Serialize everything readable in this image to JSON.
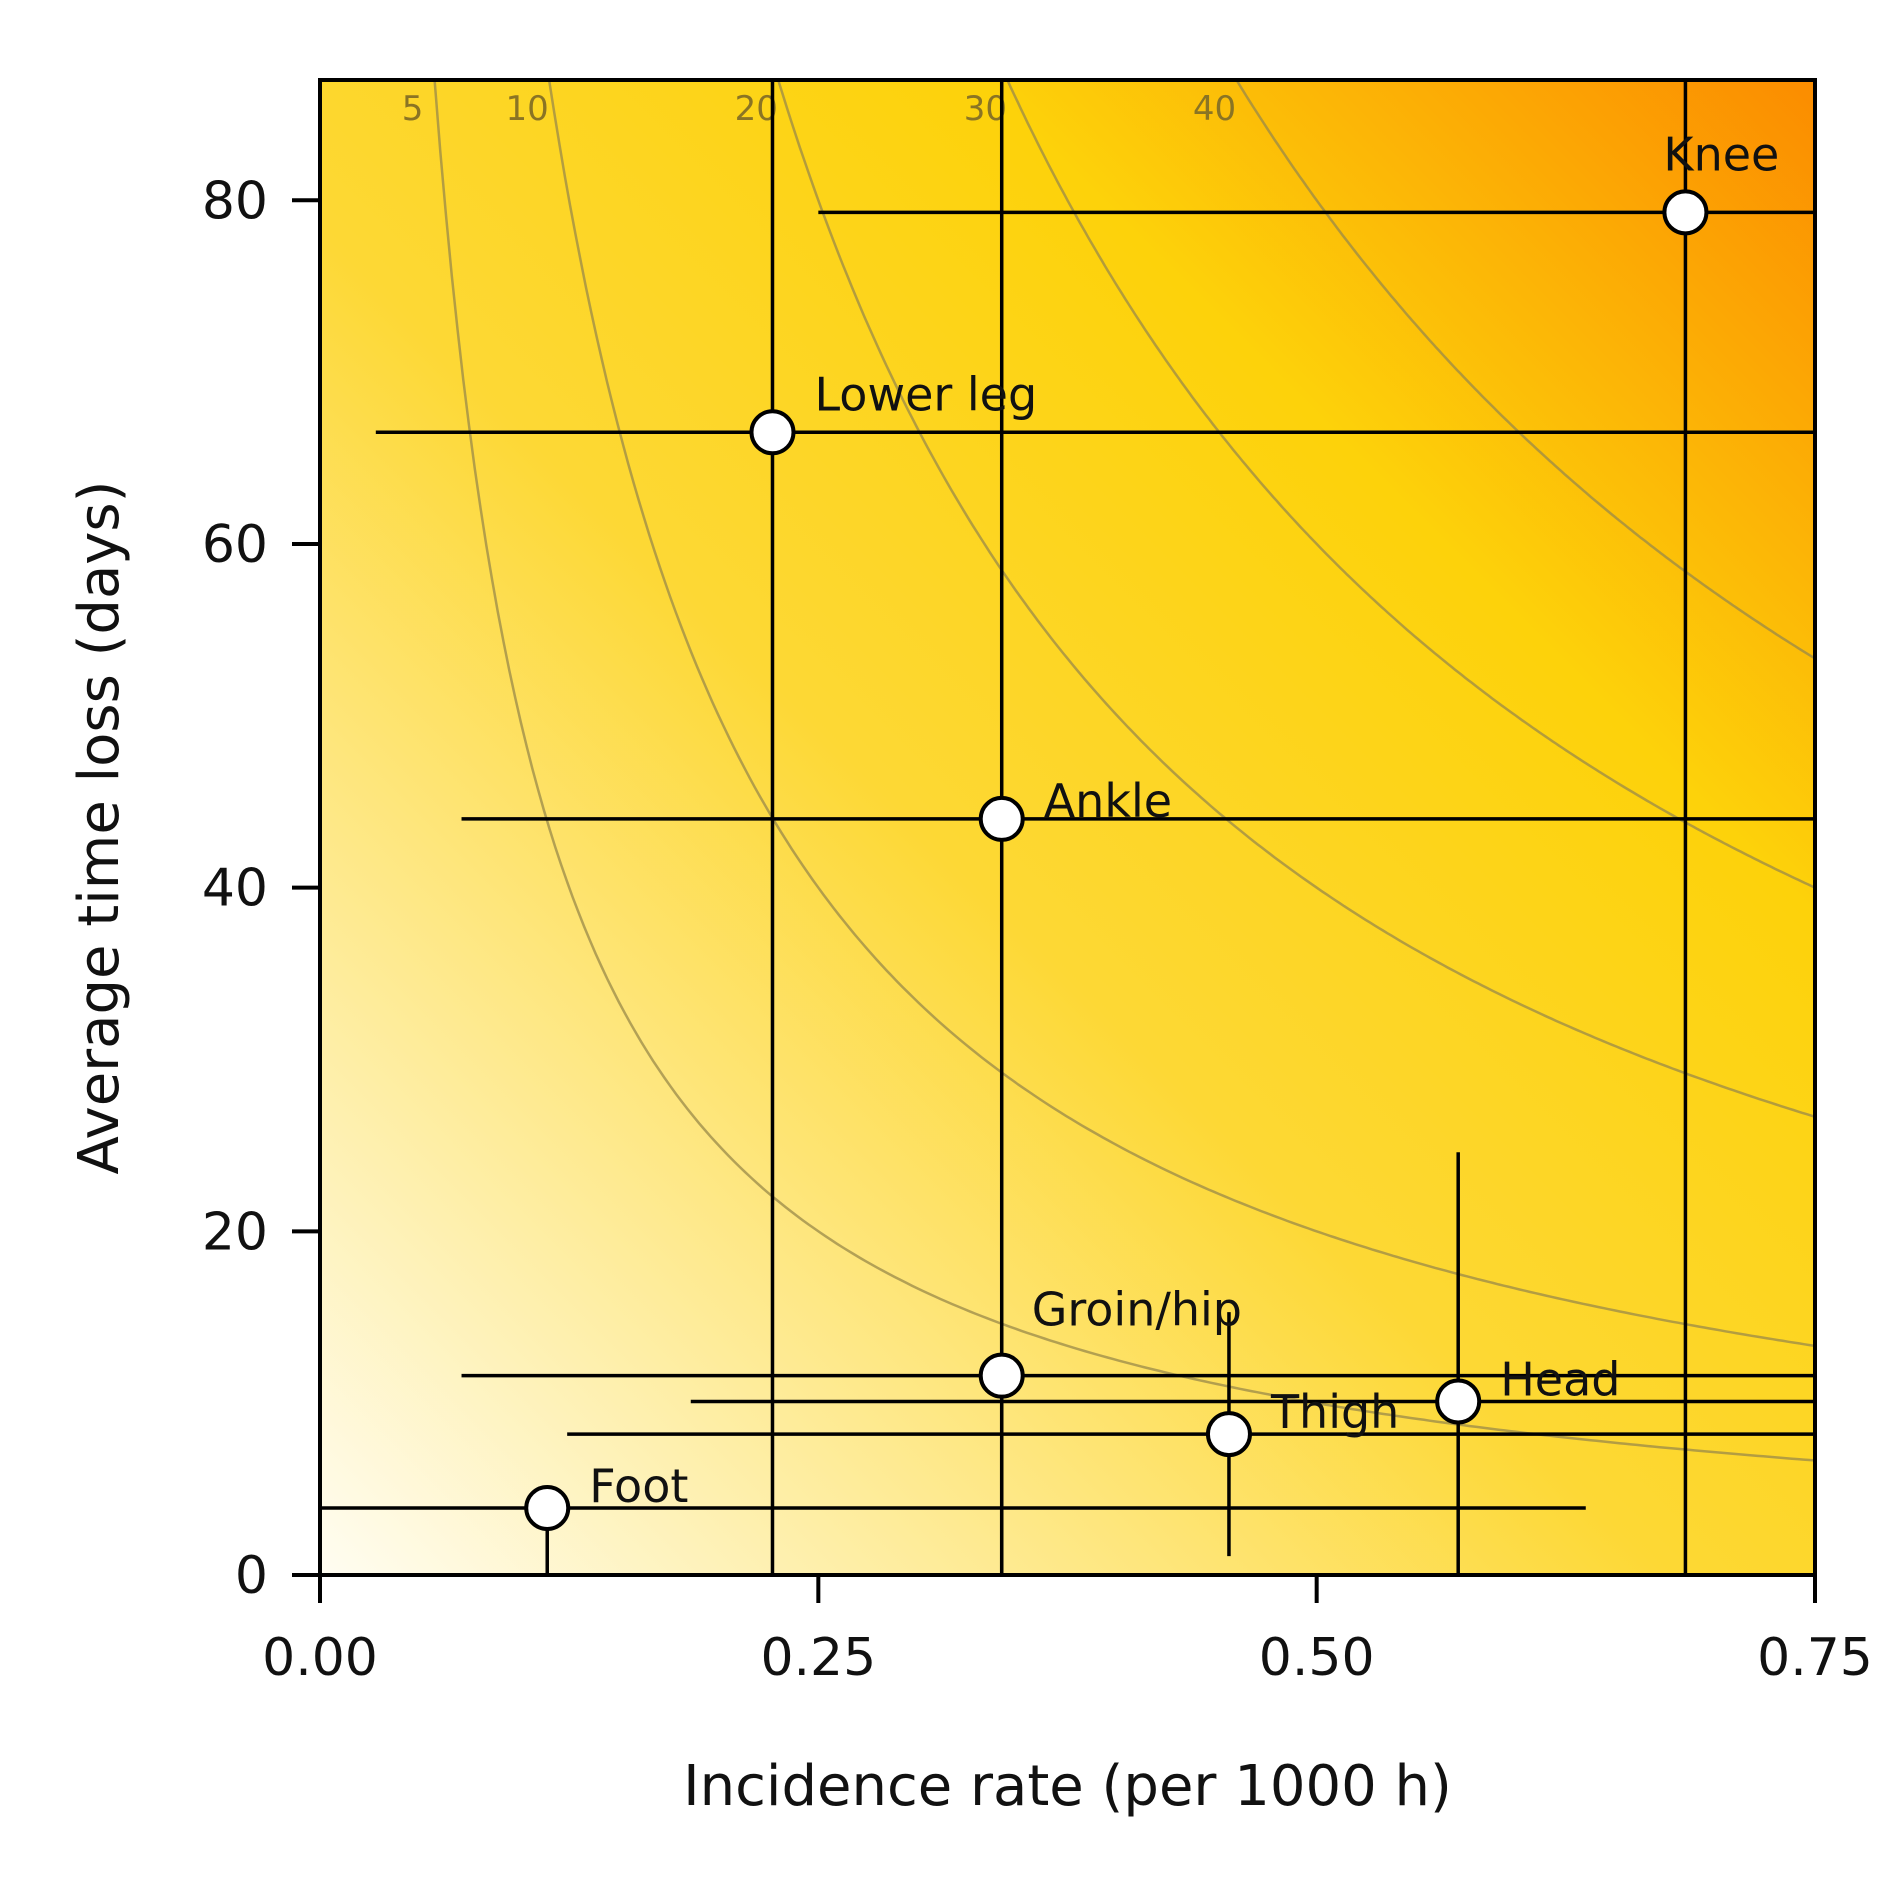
{
  "chart_data": {
    "type": "scatter",
    "title": "",
    "xlabel": "Incidence rate (per 1000 h)",
    "ylabel": "Average time loss (days)",
    "xlim": [
      0,
      0.75
    ],
    "ylim": [
      0,
      87
    ],
    "x_ticks": [
      0,
      0.25,
      0.5,
      0.75
    ],
    "x_tick_labels": [
      "0.00",
      "0.25",
      "0.50",
      "0.75"
    ],
    "y_ticks": [
      0,
      20,
      40,
      60,
      80
    ],
    "y_tick_labels": [
      "0",
      "20",
      "40",
      "60",
      "80"
    ],
    "grid": false,
    "background": "burden gradient: low burden light cream (bottom-left) to high burden orange (top-right)",
    "burden_contours": {
      "levels": [
        5,
        10,
        20,
        30,
        40
      ],
      "labels": [
        "5",
        "10",
        "20",
        "30",
        "40"
      ],
      "relation": "burden = incidence x average time loss"
    },
    "points": [
      {
        "label": "Knee",
        "x": 0.685,
        "y": 79.3,
        "x_ci": [
          0.25,
          0.75
        ],
        "y_ci": [
          0,
          87
        ]
      },
      {
        "label": "Lower leg",
        "x": 0.227,
        "y": 66.5,
        "x_ci": [
          0.028,
          0.75
        ],
        "y_ci": [
          0,
          87
        ]
      },
      {
        "label": "Ankle",
        "x": 0.342,
        "y": 44.0,
        "x_ci": [
          0.071,
          0.75
        ],
        "y_ci": [
          0,
          87
        ]
      },
      {
        "label": "Groin/hip",
        "x": 0.342,
        "y": 11.6,
        "x_ci": [
          0.071,
          0.75
        ],
        "y_ci": [
          0,
          14.4
        ]
      },
      {
        "label": "Head",
        "x": 0.571,
        "y": 10.1,
        "x_ci": [
          0.186,
          0.75
        ],
        "y_ci": [
          0,
          24.6
        ]
      },
      {
        "label": "Thigh",
        "x": 0.456,
        "y": 8.2,
        "x_ci": [
          0.124,
          0.75
        ],
        "y_ci": [
          1.1,
          15.3
        ]
      },
      {
        "label": "Foot",
        "x": 0.114,
        "y": 3.9,
        "x_ci": [
          0,
          0.635
        ],
        "y_ci": [
          0,
          3.9
        ]
      }
    ],
    "colors": {
      "gradient_low": "#fffdf2",
      "gradient_mid": "#fdd835",
      "gradient_peak": "#fdd20a",
      "gradient_high": "#fb8c00",
      "contour_line": "#9a8a4a",
      "error_bar": "#000000",
      "marker_fill": "#ffffff",
      "marker_edge": "#000000"
    }
  }
}
